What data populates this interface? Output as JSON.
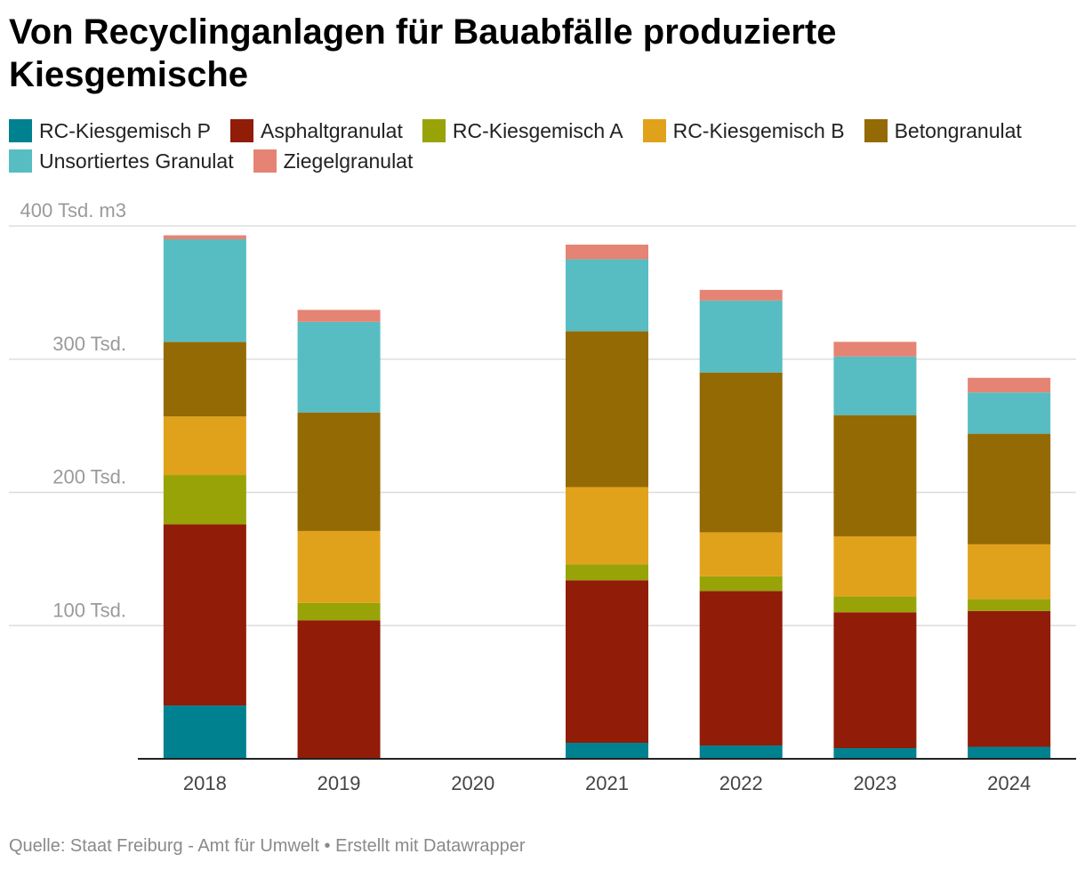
{
  "chart_data": {
    "type": "bar",
    "stacked": true,
    "title": "Von Recyclinganlagen für Bauabfälle produzierte Kiesgemische",
    "categories": [
      "2018",
      "2019",
      "2020",
      "2021",
      "2022",
      "2023",
      "2024"
    ],
    "series": [
      {
        "name": "RC-Kiesgemisch P",
        "color": "#00818f",
        "values": [
          40,
          0,
          0,
          12,
          10,
          8,
          9
        ]
      },
      {
        "name": "Asphaltgranulat",
        "color": "#911c08",
        "values": [
          136,
          104,
          0,
          122,
          116,
          102,
          102
        ]
      },
      {
        "name": "RC-Kiesgemisch A",
        "color": "#98a308",
        "values": [
          37,
          13,
          0,
          12,
          11,
          12,
          9
        ]
      },
      {
        "name": "RC-Kiesgemisch B",
        "color": "#e1a21b",
        "values": [
          44,
          54,
          0,
          58,
          33,
          45,
          41
        ]
      },
      {
        "name": "Betongranulat",
        "color": "#946a05",
        "values": [
          56,
          89,
          0,
          117,
          120,
          91,
          83
        ]
      },
      {
        "name": "Unsortiertes Granulat",
        "color": "#57bdc2",
        "values": [
          77,
          68,
          0,
          54,
          54,
          44,
          31
        ]
      },
      {
        "name": "Ziegelgranulat",
        "color": "#e58474",
        "values": [
          3,
          9,
          0,
          11,
          8,
          11,
          11
        ]
      }
    ],
    "yticks": [
      {
        "value": 100,
        "label": "100 Tsd."
      },
      {
        "value": 200,
        "label": "200 Tsd."
      },
      {
        "value": 300,
        "label": "300 Tsd."
      },
      {
        "value": 400,
        "label": "400 Tsd. m3"
      }
    ],
    "ylim": [
      0,
      400
    ],
    "xlabel": "",
    "ylabel": "",
    "grid": true,
    "legend_position": "top",
    "source": "Quelle: Staat Freiburg - Amt für Umwelt • Erstellt mit Datawrapper"
  }
}
